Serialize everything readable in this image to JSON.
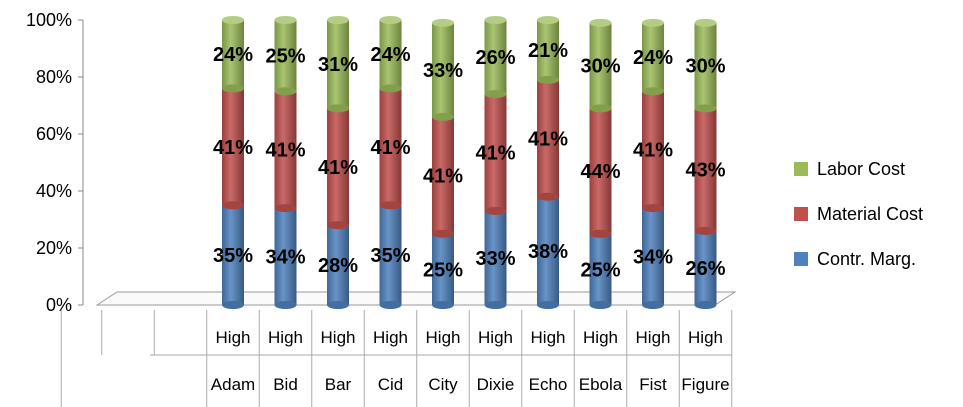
{
  "chart_data": {
    "type": "bar",
    "stacked": true,
    "percent_stacked": true,
    "categories": [
      {
        "group": "Adam",
        "sub": "High"
      },
      {
        "group": "Bid",
        "sub": "High"
      },
      {
        "group": "Bar",
        "sub": "High"
      },
      {
        "group": "Cid",
        "sub": "High"
      },
      {
        "group": "City",
        "sub": "High"
      },
      {
        "group": "Dixie",
        "sub": "High"
      },
      {
        "group": "Echo",
        "sub": "High"
      },
      {
        "group": "Ebola",
        "sub": "High"
      },
      {
        "group": "Fist",
        "sub": "High"
      },
      {
        "group": "Figure",
        "sub": "High"
      }
    ],
    "series": [
      {
        "name": "Contr. Marg.",
        "color": "#4F81BD",
        "values": [
          35,
          34,
          28,
          35,
          25,
          33,
          38,
          25,
          34,
          26
        ]
      },
      {
        "name": "Material Cost",
        "color": "#C0504D",
        "values": [
          41,
          41,
          41,
          41,
          41,
          41,
          41,
          44,
          41,
          43
        ]
      },
      {
        "name": "Labor Cost",
        "color": "#9BBB59",
        "values": [
          24,
          25,
          31,
          24,
          33,
          26,
          21,
          30,
          24,
          30
        ]
      }
    ],
    "data_labels": [
      [
        "35%",
        "34%",
        "28%",
        "35%",
        "25%",
        "33%",
        "38%",
        "25%",
        "34%",
        "26%"
      ],
      [
        "41%",
        "41%",
        "41%",
        "41%",
        "41%",
        "41%",
        "41%",
        "44%",
        "41%",
        "43%"
      ],
      [
        "24%",
        "25%",
        "31%",
        "24%",
        "33%",
        "26%",
        "21%",
        "30%",
        "24%",
        "30%"
      ]
    ],
    "yticks": [
      "0%",
      "20%",
      "40%",
      "60%",
      "80%",
      "100%"
    ],
    "ylim": [
      0,
      100
    ],
    "title": "",
    "xlabel": "",
    "ylabel": "",
    "legend_position": "right",
    "legend_order": [
      "Labor Cost",
      "Material Cost",
      "Contr. Marg."
    ],
    "grid": false
  }
}
